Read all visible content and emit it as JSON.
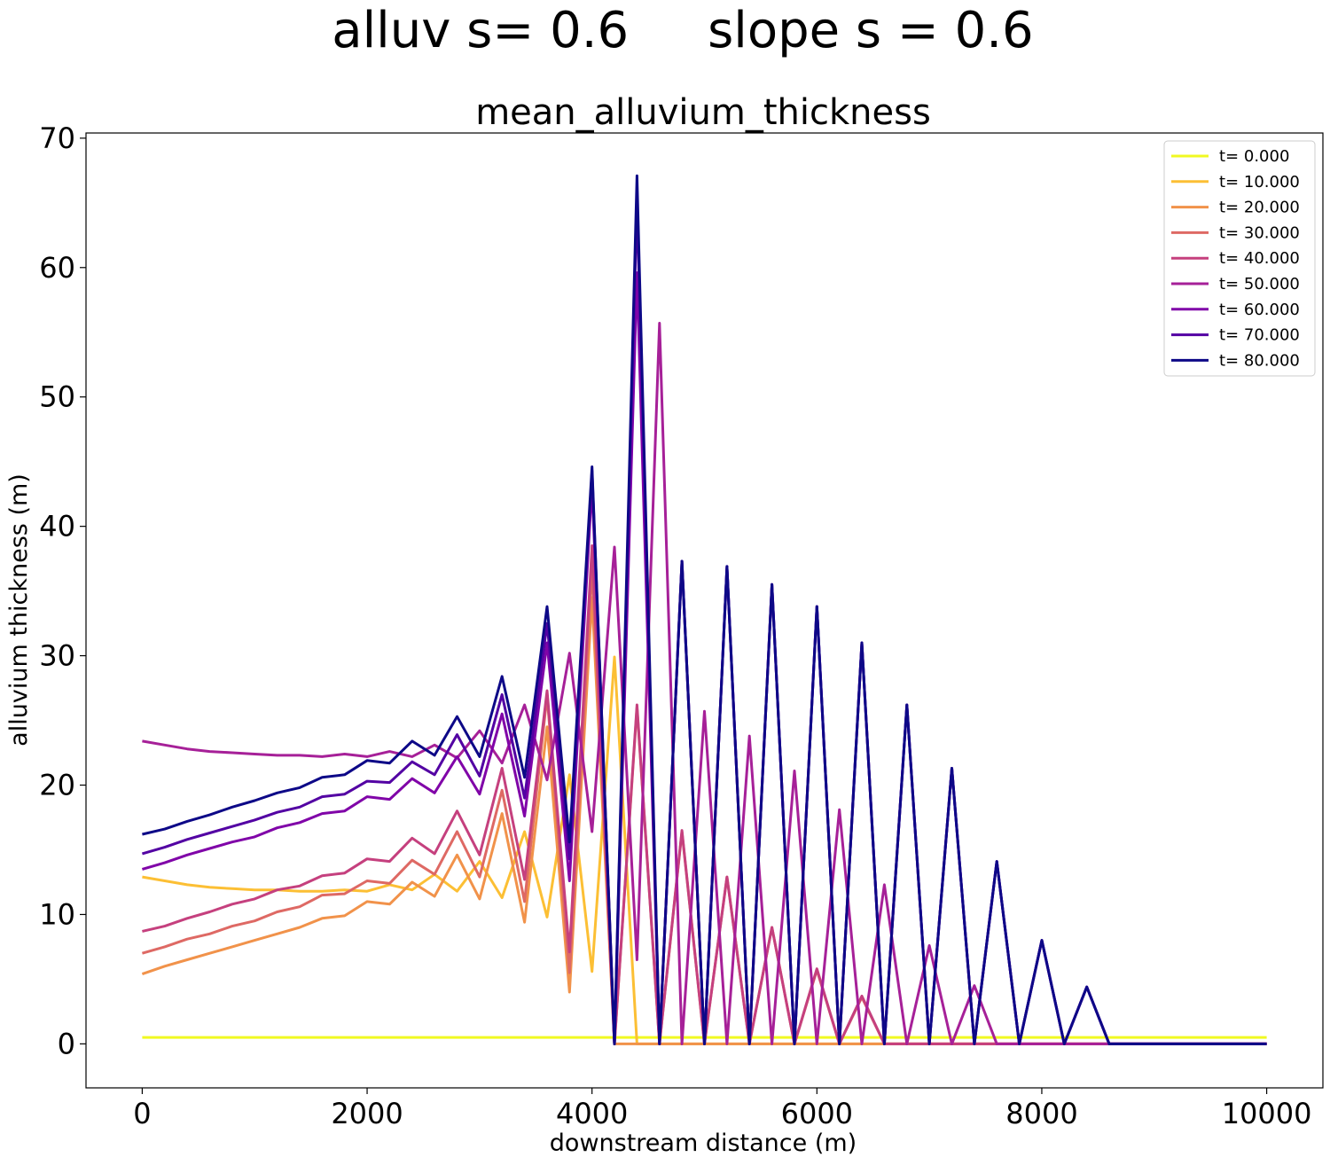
{
  "chart_data": {
    "type": "line",
    "suptitle": "alluv s= 0.6     slope s = 0.6",
    "title": "mean_alluvium_thickness",
    "xlabel": "downstream distance (m)",
    "ylabel": "alluvium thickness (m)",
    "xlim": [
      -500,
      10500
    ],
    "ylim": [
      -3.4,
      70.4
    ],
    "xticks": [
      0,
      2000,
      4000,
      6000,
      8000,
      10000
    ],
    "xtick_labels": [
      "0",
      "2000",
      "4000",
      "6000",
      "8000",
      "10000"
    ],
    "yticks": [
      0,
      10,
      20,
      30,
      40,
      50,
      60,
      70
    ],
    "ytick_labels": [
      "0",
      "10",
      "20",
      "30",
      "40",
      "50",
      "60",
      "70"
    ],
    "legend_position": "top-right",
    "x": [
      0,
      200,
      400,
      600,
      800,
      1000,
      1200,
      1400,
      1600,
      1800,
      2000,
      2200,
      2400,
      2600,
      2800,
      3000,
      3200,
      3400,
      3600,
      3800,
      4000,
      4200,
      4400,
      4600,
      4800,
      5000,
      5200,
      5400,
      5600,
      5800,
      6000,
      6200,
      6400,
      6600,
      6800,
      7000,
      7200,
      7400,
      7600,
      7800,
      8000,
      8200,
      8400,
      8600,
      8800,
      9000,
      9200,
      9400,
      9600,
      9800,
      10000
    ],
    "series": [
      {
        "name": "t= 0.000",
        "color": "#f0f921",
        "values": [
          0.5,
          0.5,
          0.5,
          0.5,
          0.5,
          0.5,
          0.5,
          0.5,
          0.5,
          0.5,
          0.5,
          0.5,
          0.5,
          0.5,
          0.5,
          0.5,
          0.5,
          0.5,
          0.5,
          0.5,
          0.5,
          0.5,
          0.5,
          0.5,
          0.5,
          0.5,
          0.5,
          0.5,
          0.5,
          0.5,
          0.5,
          0.5,
          0.5,
          0.5,
          0.5,
          0.5,
          0.5,
          0.5,
          0.5,
          0.5,
          0.5,
          0.5,
          0.5,
          0.5,
          0.5,
          0.5,
          0.5,
          0.5,
          0.5,
          0.5,
          0.5
        ]
      },
      {
        "name": "t= 10.000",
        "color": "#fcbf34",
        "values": [
          12.9,
          12.6,
          12.3,
          12.1,
          12.0,
          11.9,
          11.9,
          11.8,
          11.8,
          11.9,
          11.8,
          12.3,
          11.9,
          13.1,
          11.8,
          14.1,
          11.3,
          16.4,
          9.8,
          20.8,
          5.6,
          29.9,
          0.0,
          0.0,
          0.0,
          0.0,
          0.0,
          0.0,
          0.0,
          0.0,
          0.0,
          0.0,
          0.0,
          0.0,
          0.0,
          0.0,
          0.0,
          0.0,
          0.0,
          0.0,
          0.0,
          0.0,
          0.0,
          0.0,
          0.0,
          0.0,
          0.0,
          0.0,
          0.0,
          0.0,
          0.0
        ]
      },
      {
        "name": "t= 20.000",
        "color": "#f1924a",
        "values": [
          5.4,
          6.0,
          6.5,
          7.0,
          7.5,
          8.0,
          8.5,
          9.0,
          9.7,
          9.9,
          11.0,
          10.8,
          12.5,
          11.4,
          14.6,
          11.2,
          17.8,
          9.4,
          24.5,
          4.0,
          34.5,
          0.0,
          0.0,
          0.0,
          0.0,
          0.0,
          0.0,
          0.0,
          0.0,
          0.0,
          0.0,
          0.0,
          0.0,
          0.0,
          0.0,
          0.0,
          0.0,
          0.0,
          0.0,
          0.0,
          0.0,
          0.0,
          0.0,
          0.0,
          0.0,
          0.0,
          0.0,
          0.0,
          0.0,
          0.0,
          0.0
        ]
      },
      {
        "name": "t= 30.000",
        "color": "#de6964",
        "values": [
          7.0,
          7.5,
          8.1,
          8.5,
          9.1,
          9.5,
          10.2,
          10.6,
          11.5,
          11.6,
          12.6,
          12.4,
          14.2,
          13.1,
          16.4,
          12.9,
          19.6,
          11.0,
          26.9,
          5.5,
          36.8,
          0.0,
          26.0,
          0.0,
          16.4,
          0.0,
          12.9,
          0.0,
          9.0,
          0.0,
          5.7,
          0.0,
          3.6,
          0.0,
          0.0,
          0.0,
          0.0,
          0.0,
          0.0,
          0.0,
          0.0,
          0.0,
          0.0,
          0.0,
          0.0,
          0.0,
          0.0,
          0.0,
          0.0,
          0.0,
          0.0
        ]
      },
      {
        "name": "t= 40.000",
        "color": "#c5407e",
        "values": [
          8.7,
          9.1,
          9.7,
          10.2,
          10.8,
          11.2,
          11.9,
          12.2,
          13.0,
          13.2,
          14.3,
          14.1,
          15.9,
          14.7,
          18.0,
          14.6,
          21.3,
          12.7,
          27.3,
          7.1,
          38.5,
          0.0,
          26.2,
          0.0,
          16.5,
          0.0,
          12.9,
          0.0,
          9.0,
          0.0,
          5.8,
          0.0,
          3.7,
          0.0,
          0.0,
          0.0,
          0.0,
          0.0,
          0.0,
          0.0,
          0.0,
          0.0,
          0.0,
          0.0,
          0.0,
          0.0,
          0.0,
          0.0,
          0.0,
          0.0,
          0.0
        ]
      },
      {
        "name": "t= 50.000",
        "color": "#a62098",
        "values": [
          23.4,
          23.1,
          22.8,
          22.6,
          22.5,
          22.4,
          22.3,
          22.3,
          22.2,
          22.4,
          22.2,
          22.6,
          22.2,
          23.1,
          22.1,
          24.2,
          21.7,
          26.2,
          20.4,
          30.2,
          16.4,
          38.4,
          6.5,
          55.7,
          0.0,
          25.7,
          0.0,
          23.8,
          0.0,
          21.1,
          0.0,
          18.1,
          0.0,
          12.3,
          0.0,
          7.6,
          0.0,
          4.5,
          0.0,
          0.0,
          0.0,
          0.0,
          0.0,
          0.0,
          0.0,
          0.0,
          0.0,
          0.0,
          0.0,
          0.0,
          0.0
        ]
      },
      {
        "name": "t= 60.000",
        "color": "#8004a8",
        "values": [
          13.5,
          14.0,
          14.6,
          15.1,
          15.6,
          16.0,
          16.7,
          17.1,
          17.8,
          18.0,
          19.1,
          18.9,
          20.5,
          19.4,
          22.2,
          19.3,
          25.5,
          17.6,
          31.0,
          12.6,
          43.2,
          0.0,
          59.6,
          0.0,
          37.3,
          0.0,
          36.9,
          0.0,
          35.5,
          0.0,
          33.8,
          0.0,
          31.0,
          0.0,
          26.2,
          0.0,
          21.3,
          0.0,
          14.1,
          0.0,
          8.0,
          0.0,
          4.4,
          0.0,
          0.0,
          0.0,
          0.0,
          0.0,
          0.0,
          0.0,
          0.0
        ]
      },
      {
        "name": "t= 70.000",
        "color": "#5302a3",
        "values": [
          14.7,
          15.2,
          15.8,
          16.3,
          16.8,
          17.3,
          17.9,
          18.3,
          19.1,
          19.3,
          20.3,
          20.2,
          21.8,
          20.8,
          23.9,
          20.7,
          27.0,
          19.0,
          32.5,
          14.3,
          44.3,
          0.0,
          65.0,
          0.0,
          37.3,
          0.0,
          36.9,
          0.0,
          35.5,
          0.0,
          33.8,
          0.0,
          31.0,
          0.0,
          26.2,
          0.0,
          21.3,
          0.0,
          14.1,
          0.0,
          8.0,
          0.0,
          4.4,
          0.0,
          0.0,
          0.0,
          0.0,
          0.0,
          0.0,
          0.0,
          0.0
        ]
      },
      {
        "name": "t= 80.000",
        "color": "#0d0887",
        "values": [
          16.2,
          16.6,
          17.2,
          17.7,
          18.3,
          18.8,
          19.4,
          19.8,
          20.6,
          20.8,
          21.9,
          21.7,
          23.4,
          22.3,
          25.3,
          22.2,
          28.4,
          20.6,
          33.8,
          15.6,
          44.6,
          0.0,
          67.1,
          0.0,
          37.3,
          0.0,
          36.9,
          0.0,
          35.5,
          0.0,
          33.8,
          0.0,
          31.0,
          0.0,
          26.2,
          0.0,
          21.3,
          0.0,
          14.1,
          0.0,
          8.0,
          0.0,
          4.4,
          0.0,
          0.0,
          0.0,
          0.0,
          0.0,
          0.0,
          0.0,
          0.0
        ]
      }
    ]
  }
}
